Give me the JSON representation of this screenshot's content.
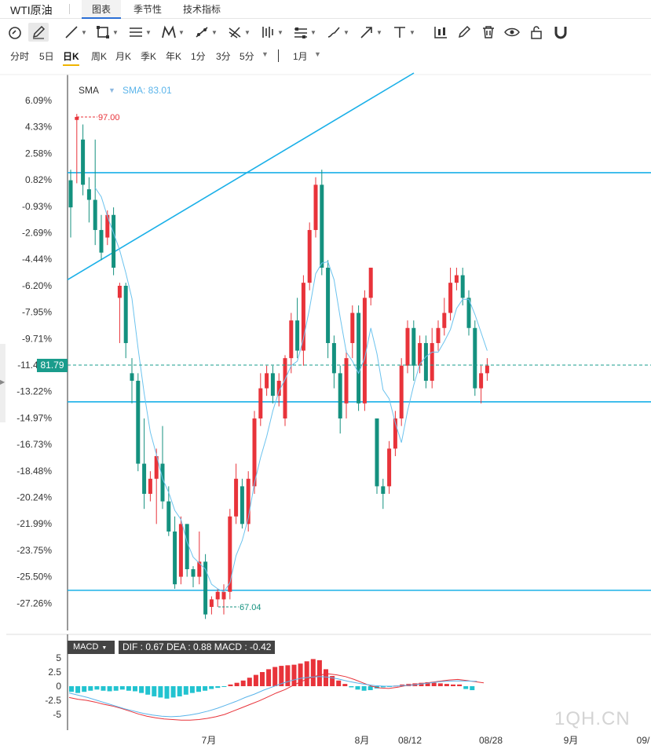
{
  "tabs": {
    "title": "WTI原油",
    "chart": "图表",
    "seasonal": "季节性",
    "technical": "技术指标"
  },
  "toolbar": [
    "magnet-icon",
    "pencil-icon",
    "line-icon",
    "rectangle-icon",
    "parallel-channel-icon",
    "pattern-icon",
    "fib-retracement-icon",
    "gann-icon",
    "bar-pattern-icon",
    "ruler-icon",
    "brush-icon",
    "arrow-icon",
    "text-icon",
    "candle-style-icon",
    "edit-icon",
    "trash-icon",
    "eye-icon",
    "lock-icon",
    "magnet-u-icon"
  ],
  "periods": {
    "items": [
      "分时",
      "5日",
      "日K",
      "周K",
      "月K",
      "季K",
      "年K",
      "1分",
      "3分",
      "5分"
    ],
    "active": "日K",
    "range": "1月"
  },
  "chart_data": {
    "type": "candlestick",
    "y_axis_type": "percent",
    "y_ticks": [
      "6.09%",
      "4.33%",
      "2.58%",
      "0.82%",
      "-0.93%",
      "-2.69%",
      "-4.44%",
      "-6.20%",
      "-7.95%",
      "-9.71%",
      "-11.46%",
      "-13.22%",
      "-14.97%",
      "-16.73%",
      "-18.48%",
      "-20.24%",
      "-21.99%",
      "-23.75%",
      "-25.50%",
      "-27.26%"
    ],
    "y_range_pct": [
      7.8,
      -28.9
    ],
    "x_ticks": [
      "7月",
      "8月",
      "08/12",
      "08/28",
      "9月",
      "09/"
    ],
    "indicator": {
      "name": "SMA",
      "value_label": "SMA: 83.01"
    },
    "current_price_label": "81.79",
    "max_label": "97.00",
    "min_label": "67.04",
    "candles": [
      [
        0.8,
        -1.0,
        -3.0,
        1.5
      ],
      [
        4.8,
        5.0,
        0.6,
        5.2
      ],
      [
        3.5,
        0.5,
        -0.2,
        4.5
      ],
      [
        0.2,
        -0.5,
        -2.0,
        1.0
      ],
      [
        -0.5,
        -2.5,
        -3.5,
        3.5
      ],
      [
        -2.5,
        -4.0,
        -4.5,
        -1.5
      ],
      [
        -3.0,
        -1.5,
        -3.5,
        -1.2
      ],
      [
        -1.5,
        -5.0,
        -5.5,
        -1.0
      ],
      [
        -7.0,
        -6.2,
        -10.0,
        -6.0
      ],
      [
        -6.2,
        -10.0,
        -11.0,
        -6.0
      ],
      [
        -12.0,
        -12.5,
        -14.0,
        -11.0
      ],
      [
        -12.5,
        -18.0,
        -18.5,
        -12.0
      ],
      [
        -18.0,
        -20.0,
        -21.0,
        -15.0
      ],
      [
        -20.0,
        -19.0,
        -20.5,
        -18.5
      ],
      [
        -19.0,
        -17.5,
        -22.0,
        -17.0
      ],
      [
        -18.0,
        -20.5,
        -21.0,
        -15.5
      ],
      [
        -20.5,
        -22.5,
        -22.8,
        -19.5
      ],
      [
        -22.5,
        -26.0,
        -26.3,
        -21.5
      ],
      [
        -25.5,
        -22.0,
        -26.0,
        -21.5
      ],
      [
        -22.0,
        -25.0,
        -25.5,
        -22.0
      ],
      [
        -25.0,
        -25.5,
        -26.2,
        -24.8
      ],
      [
        -25.5,
        -24.5,
        -26.0,
        -22.5
      ],
      [
        -24.5,
        -28.0,
        -28.3,
        -24.0
      ],
      [
        -27.5,
        -27.0,
        -28.0,
        -26.8
      ],
      [
        -27.0,
        -26.5,
        -27.5,
        -26.3
      ],
      [
        -27.0,
        -26.5,
        -28.0,
        -26.0
      ],
      [
        -26.5,
        -21.5,
        -27.0,
        -21.0
      ],
      [
        -21.5,
        -19.0,
        -22.0,
        -18.0
      ],
      [
        -19.5,
        -22.0,
        -22.3,
        -19.0
      ],
      [
        -22.0,
        -19.0,
        -22.5,
        -18.5
      ],
      [
        -19.5,
        -15.0,
        -20.0,
        -14.5
      ],
      [
        -15.0,
        -13.0,
        -15.5,
        -12.0
      ],
      [
        -13.0,
        -12.0,
        -13.5,
        -11.5
      ],
      [
        -12.0,
        -13.5,
        -14.0,
        -11.5
      ],
      [
        -13.5,
        -12.5,
        -14.2,
        -12.0
      ],
      [
        -15.0,
        -11.0,
        -15.5,
        -10.8
      ],
      [
        -11.0,
        -8.5,
        -12.0,
        -8.0
      ],
      [
        -8.5,
        -10.5,
        -11.0,
        -7.0
      ],
      [
        -10.5,
        -6.0,
        -11.5,
        -5.5
      ],
      [
        -6.0,
        -2.5,
        -6.5,
        -2.0
      ],
      [
        -2.5,
        0.5,
        -3.0,
        1.0
      ],
      [
        0.5,
        -5.0,
        -5.5,
        1.5
      ],
      [
        -5.0,
        -10.0,
        -11.0,
        -4.5
      ],
      [
        -10.0,
        -12.0,
        -13.0,
        -9.5
      ],
      [
        -12.0,
        -15.0,
        -16.0,
        -11.5
      ],
      [
        -14.0,
        -11.0,
        -15.0,
        -10.5
      ],
      [
        -10.0,
        -8.0,
        -11.0,
        -7.5
      ],
      [
        -8.0,
        -14.0,
        -14.5,
        -7.5
      ],
      [
        -14.0,
        -7.0,
        -14.5,
        -6.5
      ],
      [
        -7.0,
        -5.0,
        -7.5,
        -5.0
      ],
      [
        -15.0,
        -19.5,
        -20.0,
        -15.0
      ],
      [
        -19.5,
        -20.0,
        -21.0,
        -19.0
      ],
      [
        -19.5,
        -17.0,
        -20.0,
        -16.5
      ],
      [
        -17.0,
        -15.0,
        -17.5,
        -14.5
      ],
      [
        -15.0,
        -11.5,
        -15.5,
        -11.0
      ],
      [
        -11.5,
        -9.0,
        -12.0,
        -8.5
      ],
      [
        -9.0,
        -11.5,
        -12.5,
        -8.5
      ],
      [
        -11.5,
        -10.0,
        -12.0,
        -9.5
      ],
      [
        -10.0,
        -12.5,
        -13.0,
        -9.5
      ],
      [
        -12.5,
        -10.0,
        -13.0,
        -9.0
      ],
      [
        -10.0,
        -9.0,
        -10.5,
        -8.5
      ],
      [
        -9.0,
        -8.0,
        -9.5,
        -7.0
      ],
      [
        -8.0,
        -6.0,
        -8.5,
        -5.0
      ],
      [
        -6.0,
        -5.5,
        -6.5,
        -5.0
      ],
      [
        -5.5,
        -7.0,
        -7.5,
        -5.0
      ],
      [
        -7.0,
        -9.0,
        -9.5,
        -6.5
      ],
      [
        -9.0,
        -13.0,
        -13.5,
        -8.5
      ],
      [
        -13.0,
        -12.0,
        -14.0,
        -11.5
      ],
      [
        -12.0,
        -11.5,
        -12.5,
        -11.0
      ]
    ],
    "macd": {
      "dif": 0.67,
      "dea": 0.88,
      "macd": -0.42,
      "y_ticks": [
        5,
        2.5,
        0,
        -2.5,
        -5
      ],
      "histogram": [
        -1.0,
        -1.2,
        -1.0,
        -0.8,
        -0.6,
        -0.8,
        -0.9,
        -0.8,
        -0.6,
        -0.8,
        -0.9,
        -1.2,
        -1.5,
        -1.8,
        -2.0,
        -2.2,
        -2.0,
        -1.8,
        -1.5,
        -1.2,
        -1.0,
        -0.8,
        -0.5,
        -0.3,
        -0.1,
        0.3,
        0.6,
        1.0,
        1.5,
        2.0,
        2.5,
        3.0,
        3.4,
        3.6,
        3.7,
        3.8,
        4.0,
        4.4,
        4.8,
        4.6,
        3.0,
        1.8,
        1.0,
        0.4,
        -0.2,
        -0.6,
        -0.8,
        -0.7,
        -0.4,
        -0.2,
        -0.1,
        0.1,
        0.3,
        0.4,
        0.5,
        0.6,
        0.7,
        0.6,
        0.5,
        0.4,
        0.3,
        0.3,
        -0.5,
        -0.7
      ],
      "dif_series": [
        -2.0,
        -2.3,
        -2.5,
        -2.8,
        -3.2,
        -3.5,
        -3.9,
        -4.4,
        -4.9,
        -5.3,
        -5.6,
        -5.8,
        -5.9,
        -6.0,
        -6.0,
        -5.9,
        -5.7,
        -5.4,
        -5.0,
        -4.4,
        -3.8,
        -3.2,
        -2.6,
        -1.9,
        -1.2,
        -0.6,
        0.2,
        0.9,
        1.5,
        2.0,
        2.2,
        2.0,
        1.7,
        1.2,
        0.6,
        0.0,
        -0.3,
        -0.4,
        -0.2,
        0.1,
        0.3,
        0.5,
        0.7,
        0.9,
        1.1,
        1.2,
        1.0,
        0.8,
        0.6
      ],
      "dea_series": [
        -1.2,
        -1.6,
        -2.0,
        -2.5,
        -3.0,
        -3.5,
        -4.0,
        -4.4,
        -4.8,
        -5.1,
        -5.3,
        -5.4,
        -5.3,
        -5.1,
        -4.8,
        -4.4,
        -3.9,
        -3.3,
        -2.7,
        -2.0,
        -1.4,
        -0.7,
        -0.1,
        0.5,
        1.0,
        1.4,
        1.6,
        1.7,
        1.6,
        1.3,
        0.9,
        0.6,
        0.3,
        0.1,
        0.0,
        0.0,
        0.1,
        0.2,
        0.4,
        0.6,
        0.8,
        0.9,
        0.95,
        0.9,
        0.88
      ]
    }
  },
  "macd_label": "MACD",
  "macd_values": "DIF : 0.67  DEA : 0.88  MACD : -0.42",
  "watermark": "1QH.CN",
  "colors": {
    "up": "#e8333a",
    "down": "#14917f",
    "line": "#1ab0e8",
    "sma": "#6cc3ee"
  }
}
